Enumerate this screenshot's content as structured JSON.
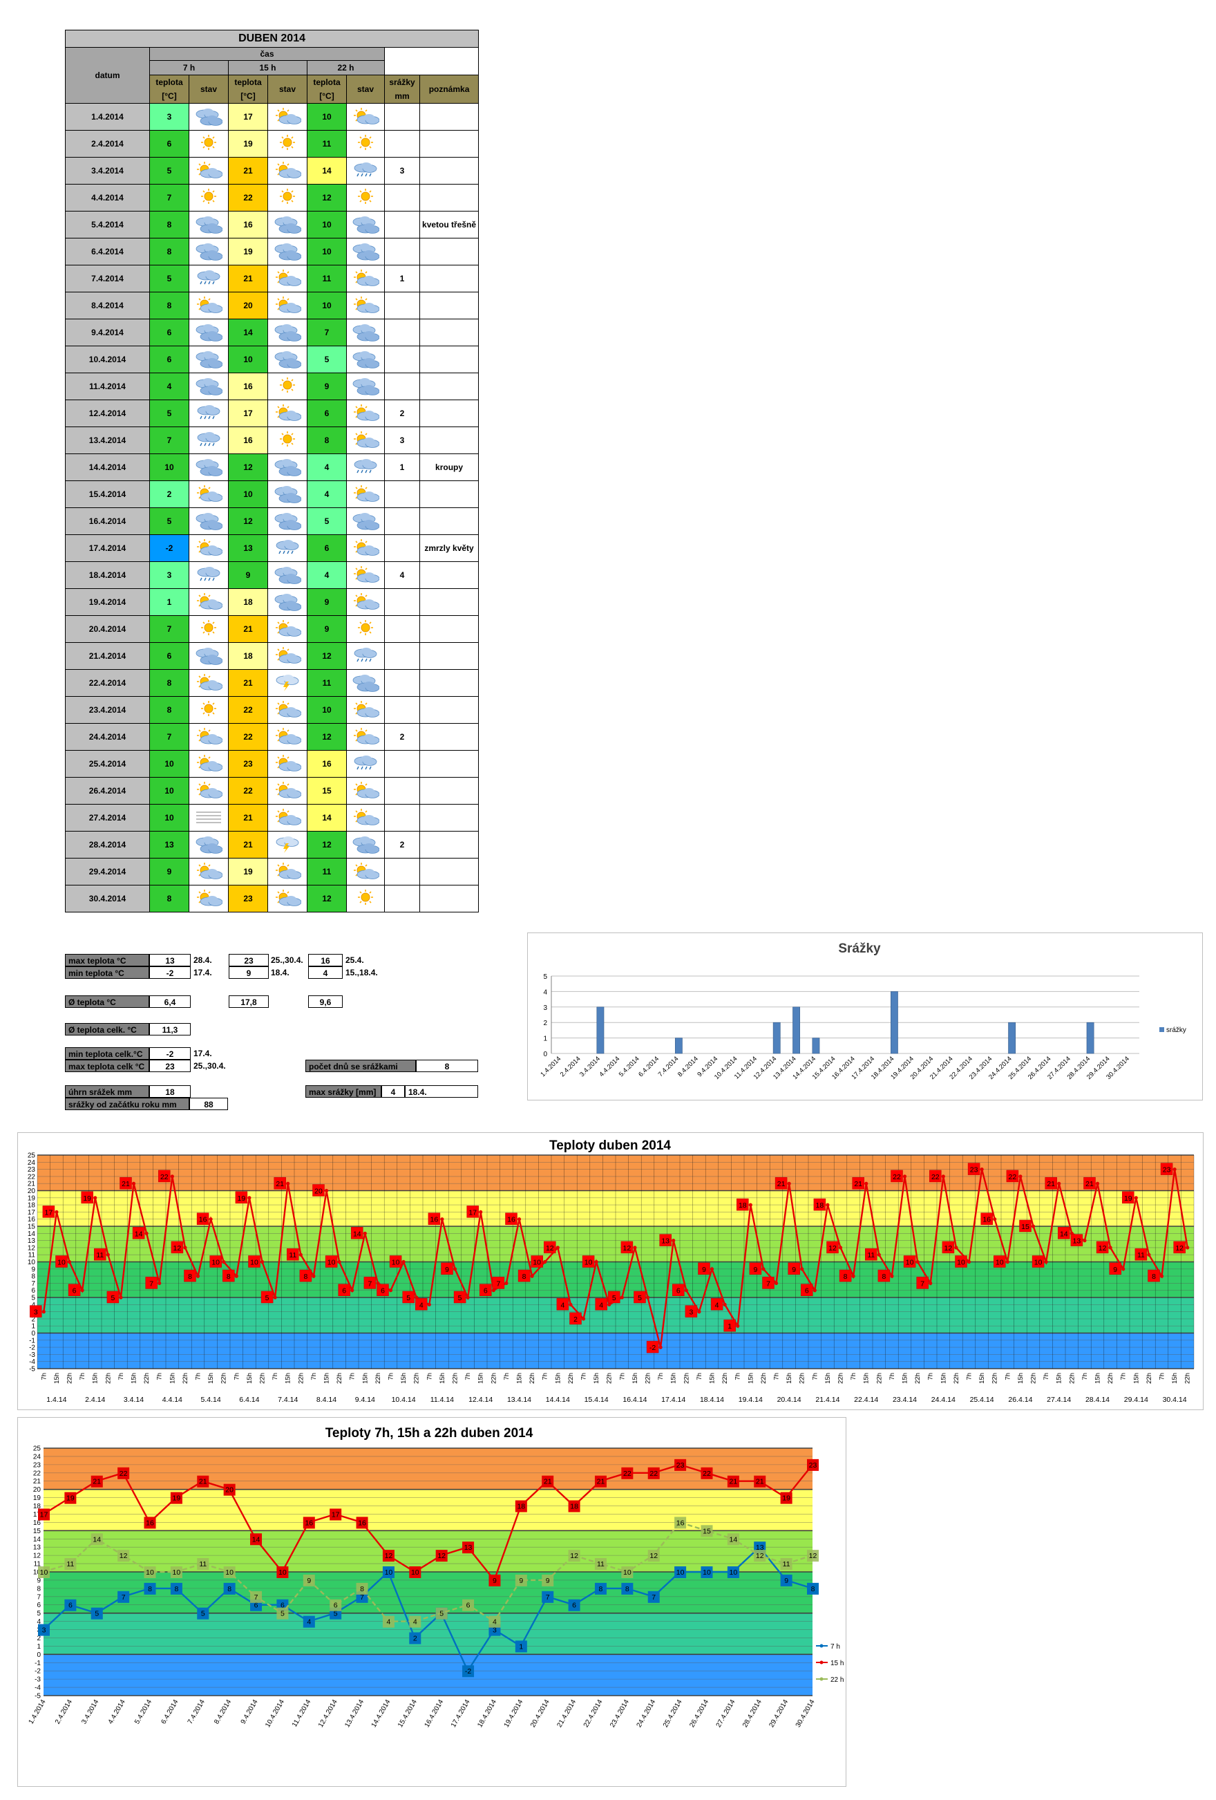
{
  "table": {
    "title": "DUBEN 2014",
    "h_datum": "datum",
    "h_cas": "čas",
    "h_7": "7 h",
    "h_15": "15 h",
    "h_22": "22 h",
    "h_teplota": "teplota",
    "h_unit": "[°C]",
    "h_stav": "stav",
    "h_srazky": "srážky",
    "h_mm": "mm",
    "h_poznamka": "poznámka",
    "rows": [
      {
        "d": "1.4.2014",
        "t7": "3",
        "s7": "cloud",
        "t15": "17",
        "s15": "partly",
        "t22": "10",
        "s22": "partly",
        "r": "",
        "n": ""
      },
      {
        "d": "2.4.2014",
        "t7": "6",
        "s7": "sun",
        "t15": "19",
        "s15": "sun",
        "t22": "11",
        "s22": "sun",
        "r": "",
        "n": ""
      },
      {
        "d": "3.4.2014",
        "t7": "5",
        "s7": "partly",
        "t15": "21",
        "s15": "partly",
        "t22": "14",
        "s22": "rain",
        "r": "3",
        "n": ""
      },
      {
        "d": "4.4.2014",
        "t7": "7",
        "s7": "sun",
        "t15": "22",
        "s15": "sun",
        "t22": "12",
        "s22": "sun",
        "r": "",
        "n": ""
      },
      {
        "d": "5.4.2014",
        "t7": "8",
        "s7": "cloud",
        "t15": "16",
        "s15": "cloud",
        "t22": "10",
        "s22": "cloud",
        "r": "",
        "n": "kvetou třešně"
      },
      {
        "d": "6.4.2014",
        "t7": "8",
        "s7": "cloud",
        "t15": "19",
        "s15": "cloud",
        "t22": "10",
        "s22": "cloud",
        "r": "",
        "n": ""
      },
      {
        "d": "7.4.2014",
        "t7": "5",
        "s7": "rain",
        "t15": "21",
        "s15": "partly",
        "t22": "11",
        "s22": "partly",
        "r": "1",
        "n": ""
      },
      {
        "d": "8.4.2014",
        "t7": "8",
        "s7": "partly",
        "t15": "20",
        "s15": "partly",
        "t22": "10",
        "s22": "partly",
        "r": "",
        "n": ""
      },
      {
        "d": "9.4.2014",
        "t7": "6",
        "s7": "cloud",
        "t15": "14",
        "s15": "cloud",
        "t22": "7",
        "s22": "cloud",
        "r": "",
        "n": ""
      },
      {
        "d": "10.4.2014",
        "t7": "6",
        "s7": "cloud",
        "t15": "10",
        "s15": "cloud",
        "t22": "5",
        "s22": "cloud",
        "r": "",
        "n": ""
      },
      {
        "d": "11.4.2014",
        "t7": "4",
        "s7": "cloud",
        "t15": "16",
        "s15": "sun",
        "t22": "9",
        "s22": "cloud",
        "r": "",
        "n": ""
      },
      {
        "d": "12.4.2014",
        "t7": "5",
        "s7": "rain",
        "t15": "17",
        "s15": "partly",
        "t22": "6",
        "s22": "partly",
        "r": "2",
        "n": ""
      },
      {
        "d": "13.4.2014",
        "t7": "7",
        "s7": "rain",
        "t15": "16",
        "s15": "sun",
        "t22": "8",
        "s22": "partly",
        "r": "3",
        "n": ""
      },
      {
        "d": "14.4.2014",
        "t7": "10",
        "s7": "cloud",
        "t15": "12",
        "s15": "cloud",
        "t22": "4",
        "s22": "rain",
        "r": "1",
        "n": "kroupy"
      },
      {
        "d": "15.4.2014",
        "t7": "2",
        "s7": "partly",
        "t15": "10",
        "s15": "cloud",
        "t22": "4",
        "s22": "partly",
        "r": "",
        "n": ""
      },
      {
        "d": "16.4.2014",
        "t7": "5",
        "s7": "cloud",
        "t15": "12",
        "s15": "cloud",
        "t22": "5",
        "s22": "cloud",
        "r": "",
        "n": ""
      },
      {
        "d": "17.4.2014",
        "t7": "-2",
        "s7": "partly",
        "t15": "13",
        "s15": "rain",
        "t22": "6",
        "s22": "partly",
        "r": "",
        "n": "zmrzly květy"
      },
      {
        "d": "18.4.2014",
        "t7": "3",
        "s7": "rain",
        "t15": "9",
        "s15": "cloud",
        "t22": "4",
        "s22": "partly",
        "r": "4",
        "n": ""
      },
      {
        "d": "19.4.2014",
        "t7": "1",
        "s7": "partly",
        "t15": "18",
        "s15": "cloud",
        "t22": "9",
        "s22": "partly",
        "r": "",
        "n": ""
      },
      {
        "d": "20.4.2014",
        "t7": "7",
        "s7": "sun",
        "t15": "21",
        "s15": "partly",
        "t22": "9",
        "s22": "sun",
        "r": "",
        "n": ""
      },
      {
        "d": "21.4.2014",
        "t7": "6",
        "s7": "cloud",
        "t15": "18",
        "s15": "partly",
        "t22": "12",
        "s22": "rain",
        "r": "",
        "n": ""
      },
      {
        "d": "22.4.2014",
        "t7": "8",
        "s7": "partly",
        "t15": "21",
        "s15": "storm",
        "t22": "11",
        "s22": "cloud",
        "r": "",
        "n": ""
      },
      {
        "d": "23.4.2014",
        "t7": "8",
        "s7": "sun",
        "t15": "22",
        "s15": "partly",
        "t22": "10",
        "s22": "partly",
        "r": "",
        "n": ""
      },
      {
        "d": "24.4.2014",
        "t7": "7",
        "s7": "partly",
        "t15": "22",
        "s15": "partly",
        "t22": "12",
        "s22": "partly",
        "r": "2",
        "n": ""
      },
      {
        "d": "25.4.2014",
        "t7": "10",
        "s7": "partly",
        "t15": "23",
        "s15": "partly",
        "t22": "16",
        "s22": "rain",
        "r": "",
        "n": ""
      },
      {
        "d": "26.4.2014",
        "t7": "10",
        "s7": "partly",
        "t15": "22",
        "s15": "partly",
        "t22": "15",
        "s22": "partly",
        "r": "",
        "n": ""
      },
      {
        "d": "27.4.2014",
        "t7": "10",
        "s7": "fog",
        "t15": "21",
        "s15": "partly",
        "t22": "14",
        "s22": "partly",
        "r": "",
        "n": ""
      },
      {
        "d": "28.4.2014",
        "t7": "13",
        "s7": "cloud",
        "t15": "21",
        "s15": "storm",
        "t22": "12",
        "s22": "cloud",
        "r": "2",
        "n": ""
      },
      {
        "d": "29.4.2014",
        "t7": "9",
        "s7": "partly",
        "t15": "19",
        "s15": "partly",
        "t22": "11",
        "s22": "partly",
        "r": "",
        "n": ""
      },
      {
        "d": "30.4.2014",
        "t7": "8",
        "s7": "partly",
        "t15": "23",
        "s15": "partly",
        "t22": "12",
        "s22": "sun",
        "r": "",
        "n": ""
      }
    ]
  },
  "stats": {
    "max_label": "max teplota °C",
    "min_label": "min teplota °C",
    "max7": "13",
    "max7d": "28.4.",
    "max15": "23",
    "max15d": "25.,30.4.",
    "max22": "16",
    "max22d": "25.4.",
    "min7": "-2",
    "min7d": "17.4.",
    "min15": "9",
    "min15d": "18.4.",
    "min22": "4",
    "min22d": "15.,18.4.",
    "avg_label": "Ø teplota °C",
    "avg7": "6,4",
    "avg15": "17,8",
    "avg22": "9,6",
    "avgall_label": "Ø teplota celk. °C",
    "avgall": "11,3",
    "minall_label": "min teplota celk.°C",
    "minall": "-2",
    "minall_d": "17.4.",
    "maxall_label": "max teplota celk °C",
    "maxall": "23",
    "maxall_d": "25.,30.4.",
    "raindays_label": "počet dnů se srážkami",
    "raindays": "8",
    "rainsum_label": "úhrn srážek  mm",
    "rainsum": "18",
    "rainmax_label": "max srážky [mm]",
    "rainmax": "4",
    "rainmax_d": "18.4.",
    "rainyear_label": "srážky od začátku roku mm",
    "rainyear": "88"
  },
  "colors": {
    "orange": "#f79646",
    "yellow": "#ffff66",
    "green": "#33cc66",
    "blue": "#3399ff",
    "red": "#ff0000",
    "bar": "#4f81bd",
    "blue7": "#0070c0",
    "green22": "#9bbb59"
  },
  "chart_data": [
    {
      "type": "bar",
      "title": "Srážky",
      "legend": "srážky",
      "legend_position": "right",
      "categories": [
        "1.4.2014",
        "2.4.2014",
        "3.4.2014",
        "4.4.2014",
        "5.4.2014",
        "6.4.2014",
        "7.4.2014",
        "8.4.2014",
        "9.4.2014",
        "10.4.2014",
        "11.4.2014",
        "12.4.2014",
        "13.4.2014",
        "14.4.2014",
        "15.4.2014",
        "16.4.2014",
        "17.4.2014",
        "18.4.2014",
        "19.4.2014",
        "20.4.2014",
        "21.4.2014",
        "22.4.2014",
        "23.4.2014",
        "24.4.2014",
        "25.4.2014",
        "26.4.2014",
        "27.4.2014",
        "28.4.2014",
        "29.4.2014",
        "30.4.2014"
      ],
      "values": [
        0,
        0,
        3,
        0,
        0,
        0,
        1,
        0,
        0,
        0,
        0,
        2,
        3,
        1,
        0,
        0,
        0,
        4,
        0,
        0,
        0,
        0,
        0,
        2,
        0,
        0,
        0,
        2,
        0,
        0
      ],
      "ylim": [
        0,
        5
      ],
      "yticks": [
        "0",
        "1",
        "2",
        "3",
        "4",
        "5"
      ]
    },
    {
      "type": "line",
      "title": "Teploty duben 2014",
      "days": [
        "1.4.14",
        "2.4.14",
        "3.4.14",
        "4.4.14",
        "5.4.14",
        "6.4.14",
        "7.4.14",
        "8.4.14",
        "9.4.14",
        "10.4.14",
        "11.4.14",
        "12.4.14",
        "13.4.14",
        "14.4.14",
        "15.4.14",
        "16.4.14",
        "17.4.14",
        "18.4.14",
        "19.4.14",
        "20.4.14",
        "21.4.14",
        "22.4.14",
        "23.4.14",
        "24.4.14",
        "25.4.14",
        "26.4.14",
        "27.4.14",
        "28.4.14",
        "29.4.14",
        "30.4.14"
      ],
      "times": [
        "7h",
        "15h",
        "22h"
      ],
      "values": [
        3,
        17,
        10,
        6,
        19,
        11,
        5,
        21,
        14,
        7,
        22,
        12,
        8,
        16,
        10,
        8,
        19,
        10,
        5,
        21,
        11,
        8,
        20,
        10,
        6,
        14,
        7,
        6,
        10,
        5,
        4,
        16,
        9,
        5,
        17,
        6,
        7,
        16,
        8,
        10,
        12,
        4,
        2,
        10,
        4,
        5,
        12,
        5,
        -2,
        13,
        6,
        3,
        9,
        4,
        1,
        18,
        9,
        7,
        21,
        9,
        6,
        18,
        12,
        8,
        21,
        11,
        8,
        22,
        10,
        7,
        22,
        12,
        10,
        23,
        16,
        10,
        22,
        15,
        10,
        21,
        14,
        13,
        21,
        12,
        9,
        19,
        11,
        8,
        23,
        12
      ],
      "ylim": [
        -5,
        25
      ],
      "yticks": [
        "-5",
        "-4",
        "-3",
        "-2",
        "-1",
        "0",
        "1",
        "2",
        "3",
        "4",
        "5",
        "6",
        "7",
        "8",
        "9",
        "10",
        "11",
        "12",
        "13",
        "14",
        "15",
        "16",
        "17",
        "18",
        "19",
        "20",
        "21",
        "22",
        "23",
        "24",
        "25"
      ]
    },
    {
      "type": "line",
      "title": "Teploty 7h, 15h a 22h duben 2014",
      "categories": [
        "1.4.2014",
        "2.4.2014",
        "3.4.2014",
        "4.4.2014",
        "5.4.2014",
        "6.4.2014",
        "7.4.2014",
        "8.4.2014",
        "9.4.2014",
        "10.4.2014",
        "11.4.2014",
        "12.4.2014",
        "13.4.2014",
        "14.4.2014",
        "15.4.2014",
        "16.4.2014",
        "17.4.2014",
        "18.4.2014",
        "19.4.2014",
        "20.4.2014",
        "21.4.2014",
        "22.4.2014",
        "23.4.2014",
        "24.4.2014",
        "25.4.2014",
        "26.4.2014",
        "27.4.2014",
        "28.4.2014",
        "29.4.2014",
        "30.4.2014"
      ],
      "series": [
        {
          "name": "7 h",
          "values": [
            3,
            6,
            5,
            7,
            8,
            8,
            5,
            8,
            6,
            6,
            4,
            5,
            7,
            10,
            2,
            5,
            -2,
            3,
            1,
            7,
            6,
            8,
            8,
            7,
            10,
            10,
            10,
            13,
            9,
            8
          ]
        },
        {
          "name": "15 h",
          "values": [
            17,
            19,
            21,
            22,
            16,
            19,
            21,
            20,
            14,
            10,
            16,
            17,
            16,
            12,
            10,
            12,
            13,
            9,
            18,
            21,
            18,
            21,
            22,
            22,
            23,
            22,
            21,
            21,
            19,
            23
          ]
        },
        {
          "name": "22 h",
          "values": [
            10,
            11,
            14,
            12,
            10,
            10,
            11,
            10,
            7,
            5,
            9,
            6,
            8,
            4,
            4,
            5,
            6,
            4,
            9,
            9,
            12,
            11,
            10,
            12,
            16,
            15,
            14,
            12,
            11,
            12
          ]
        }
      ],
      "ylim": [
        -5,
        25
      ],
      "yticks": [
        "-5",
        "-4",
        "-3",
        "-2",
        "-1",
        "0",
        "1",
        "2",
        "3",
        "4",
        "5",
        "6",
        "7",
        "8",
        "9",
        "10",
        "11",
        "12",
        "13",
        "14",
        "15",
        "16",
        "17",
        "18",
        "19",
        "20",
        "21",
        "22",
        "23",
        "24",
        "25"
      ],
      "legend_position": "right"
    }
  ]
}
